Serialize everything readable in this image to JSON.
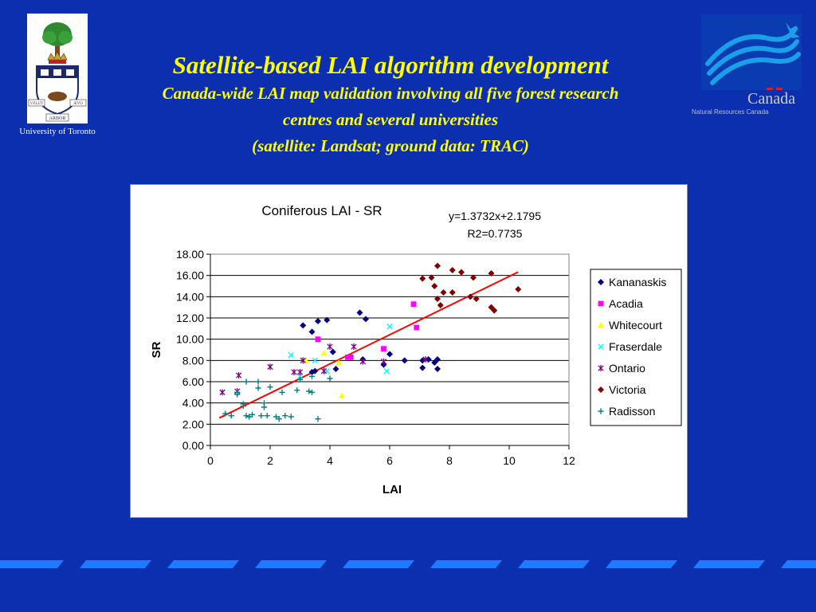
{
  "header": {
    "title": "Satellite-based LAI algorithm development",
    "subtitle_line1": "Canada-wide LAI map validation involving all five forest research",
    "subtitle_line2": "centres and several universities",
    "subtitle_line3": "(satellite: Landsat; ground data: TRAC)"
  },
  "logos": {
    "left_caption": "University of Toronto",
    "crest_scroll_1": "VELUT",
    "crest_scroll_2": "ARBOR",
    "crest_scroll_3": "ÆVO",
    "right_wordmark": "Canada",
    "right_subtext": "Natural Resources Canada"
  },
  "colors": {
    "background": "#0b2fae",
    "title": "#ffff00",
    "stripe": "#1e7bff",
    "trendline": "#ff0000"
  },
  "chart_data": {
    "type": "scatter",
    "title": "Coniferous LAI - SR",
    "xlabel": "LAI",
    "ylabel": "SR",
    "xlim": [
      0,
      12
    ],
    "ylim": [
      0,
      18
    ],
    "xticks": [
      "0",
      "2",
      "4",
      "6",
      "8",
      "10",
      "12"
    ],
    "yticks": [
      "0.00",
      "2.00",
      "4.00",
      "6.00",
      "8.00",
      "10.00",
      "12.00",
      "14.00",
      "16.00",
      "18.00"
    ],
    "grid": "horizontal",
    "legend_position": "right",
    "annotation_equation": "y=1.3732x+2.1795",
    "annotation_r2": "R2=0.7735",
    "trendline": {
      "slope": 1.3732,
      "intercept": 2.1795,
      "x_range": [
        0.3,
        10.3
      ],
      "color": "#ff0000"
    },
    "series": [
      {
        "name": "Kananaskis",
        "marker": "diamond",
        "color": "#000080",
        "points": [
          [
            3.1,
            11.3
          ],
          [
            3.4,
            10.7
          ],
          [
            3.6,
            11.7
          ],
          [
            3.9,
            11.8
          ],
          [
            5.0,
            12.5
          ],
          [
            5.2,
            11.9
          ],
          [
            4.1,
            8.8
          ],
          [
            4.2,
            7.2
          ],
          [
            3.5,
            7.0
          ],
          [
            3.4,
            6.9
          ],
          [
            5.1,
            8.1
          ],
          [
            5.8,
            7.6
          ],
          [
            6.0,
            8.6
          ],
          [
            6.5,
            8.0
          ],
          [
            7.1,
            8.0
          ],
          [
            7.1,
            7.3
          ],
          [
            7.3,
            8.1
          ],
          [
            7.5,
            7.8
          ],
          [
            7.6,
            8.1
          ],
          [
            7.6,
            7.2
          ]
        ]
      },
      {
        "name": "Acadia",
        "marker": "square",
        "color": "#ff00ff",
        "points": [
          [
            3.6,
            10.0
          ],
          [
            4.6,
            8.3
          ],
          [
            4.7,
            8.3
          ],
          [
            5.8,
            9.1
          ],
          [
            6.8,
            13.3
          ],
          [
            6.9,
            11.1
          ]
        ]
      },
      {
        "name": "Whitecourt",
        "marker": "triangle",
        "color": "#ffff00",
        "points": [
          [
            3.2,
            8.0
          ],
          [
            3.8,
            8.7
          ],
          [
            4.3,
            7.8
          ],
          [
            4.4,
            4.7
          ]
        ]
      },
      {
        "name": "Fraserdale",
        "marker": "x",
        "color": "#00ffff",
        "points": [
          [
            2.7,
            8.5
          ],
          [
            3.0,
            6.5
          ],
          [
            3.5,
            8.0
          ],
          [
            3.9,
            7.0
          ],
          [
            5.9,
            7.0
          ],
          [
            6.0,
            11.2
          ]
        ]
      },
      {
        "name": "Ontario",
        "marker": "asterisk",
        "color": "#800080",
        "points": [
          [
            0.4,
            5.0
          ],
          [
            0.9,
            5.1
          ],
          [
            0.95,
            6.6
          ],
          [
            2.0,
            7.4
          ],
          [
            2.8,
            6.9
          ],
          [
            3.0,
            6.9
          ],
          [
            3.1,
            8.0
          ],
          [
            3.8,
            7.0
          ],
          [
            4.0,
            9.3
          ],
          [
            4.8,
            9.3
          ],
          [
            5.1,
            7.9
          ],
          [
            5.8,
            7.9
          ],
          [
            7.2,
            8.1
          ]
        ]
      },
      {
        "name": "Victoria",
        "marker": "diamond",
        "color": "#800000",
        "points": [
          [
            7.1,
            15.7
          ],
          [
            7.4,
            15.8
          ],
          [
            7.6,
            16.9
          ],
          [
            7.5,
            15.0
          ],
          [
            7.6,
            13.8
          ],
          [
            7.7,
            13.2
          ],
          [
            7.8,
            14.4
          ],
          [
            8.1,
            16.5
          ],
          [
            8.1,
            14.4
          ],
          [
            8.4,
            16.3
          ],
          [
            8.7,
            14.0
          ],
          [
            8.8,
            15.8
          ],
          [
            8.9,
            13.8
          ],
          [
            9.4,
            16.2
          ],
          [
            9.4,
            13.0
          ],
          [
            9.5,
            12.7
          ],
          [
            10.3,
            14.7
          ]
        ]
      },
      {
        "name": "Radisson",
        "marker": "plus",
        "color": "#008080",
        "points": [
          [
            0.5,
            3.0
          ],
          [
            0.7,
            2.8
          ],
          [
            0.9,
            4.8
          ],
          [
            1.1,
            3.9
          ],
          [
            1.2,
            2.8
          ],
          [
            1.2,
            6.0
          ],
          [
            1.3,
            2.7
          ],
          [
            1.4,
            2.9
          ],
          [
            1.6,
            5.4
          ],
          [
            1.6,
            6.0
          ],
          [
            1.7,
            2.8
          ],
          [
            1.8,
            4.0
          ],
          [
            1.9,
            2.8
          ],
          [
            2.0,
            5.5
          ],
          [
            2.2,
            2.7
          ],
          [
            2.3,
            2.5
          ],
          [
            2.4,
            5.0
          ],
          [
            2.5,
            2.8
          ],
          [
            2.7,
            2.7
          ],
          [
            2.9,
            5.2
          ],
          [
            3.0,
            6.2
          ],
          [
            3.3,
            5.1
          ],
          [
            3.4,
            5.0
          ],
          [
            3.6,
            2.5
          ],
          [
            4.0,
            6.3
          ],
          [
            0.9,
            5.0
          ],
          [
            1.8,
            3.6
          ],
          [
            1.1,
            3.7
          ],
          [
            3.4,
            6.5
          ]
        ]
      }
    ]
  }
}
